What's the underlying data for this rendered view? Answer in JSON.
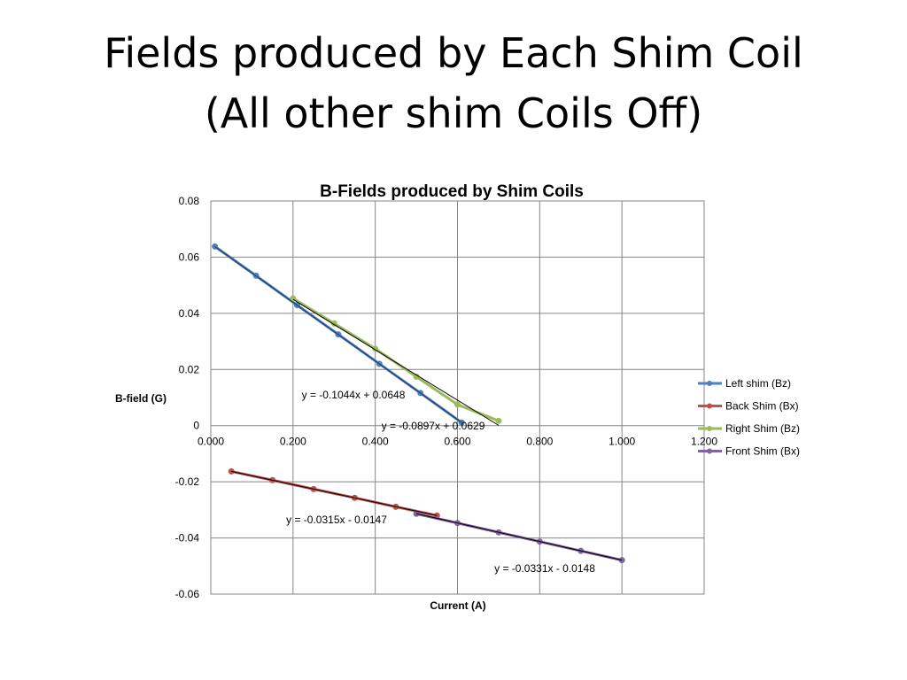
{
  "slide": {
    "title_line1": "Fields produced by Each Shim Coil",
    "title_line2": "(All other shim Coils Off)"
  },
  "chart_data": {
    "type": "scatter",
    "title": "B-Fields produced by Shim Coils",
    "xlabel": "Current (A)",
    "ylabel": "B-field (G)",
    "xlim": [
      0,
      1.2
    ],
    "ylim": [
      -0.06,
      0.08
    ],
    "x_ticks": [
      "0.000",
      "0.200",
      "0.400",
      "0.600",
      "0.800",
      "1.000",
      "1.200"
    ],
    "y_ticks": [
      "0.08",
      "0.06",
      "0.04",
      "0.02",
      "0",
      "-0.02",
      "-0.04",
      "-0.06"
    ],
    "grid": true,
    "legend_position": "right",
    "series": [
      {
        "name": "Left shim (Bz)",
        "color": "#4f81bd",
        "x": [
          0.01,
          0.11,
          0.21,
          0.31,
          0.41,
          0.51,
          0.61
        ],
        "y": [
          0.0638,
          0.0534,
          0.0429,
          0.0325,
          0.022,
          0.0116,
          0.0011
        ]
      },
      {
        "name": "Back Shim (Bx)",
        "color": "#c0504d",
        "x": [
          0.05,
          0.15,
          0.25,
          0.35,
          0.45,
          0.55
        ],
        "y": [
          -0.0163,
          -0.0194,
          -0.0226,
          -0.0257,
          -0.0289,
          -0.032
        ]
      },
      {
        "name": "Right Shim (Bz)",
        "color": "#9bbb59",
        "x": [
          0.2,
          0.3,
          0.4,
          0.5,
          0.6,
          0.7
        ],
        "y": [
          0.0453,
          0.0364,
          0.0274,
          0.0174,
          0.0075,
          0.0017
        ]
      },
      {
        "name": "Front Shim (Bx)",
        "color": "#8064a2",
        "x": [
          0.5,
          0.6,
          0.7,
          0.8,
          0.9,
          1.0
        ],
        "y": [
          -0.0314,
          -0.0347,
          -0.038,
          -0.0413,
          -0.0446,
          -0.0479
        ]
      }
    ],
    "trendlines": [
      {
        "series": "Left shim (Bz)",
        "equation": "y = -0.1044x + 0.0648",
        "slope": -0.1044,
        "intercept": 0.0648,
        "x_range": [
          0.01,
          0.61
        ],
        "color": "#1f3864"
      },
      {
        "series": "Right Shim (Bz)",
        "equation": "y = -0.0897x + 0.0629",
        "slope": -0.0897,
        "intercept": 0.0629,
        "x_range": [
          0.2,
          0.7
        ],
        "color": "#000000"
      },
      {
        "series": "Back Shim (Bx)",
        "equation": "y = -0.0315x - 0.0147",
        "slope": -0.0315,
        "intercept": -0.0147,
        "x_range": [
          0.05,
          0.55
        ],
        "color": "#000000"
      },
      {
        "series": "Front Shim (Bx)",
        "equation": "y = -0.0331x - 0.0148",
        "slope": -0.0331,
        "intercept": -0.0148,
        "x_range": [
          0.5,
          1.0
        ],
        "color": "#000000"
      }
    ]
  }
}
